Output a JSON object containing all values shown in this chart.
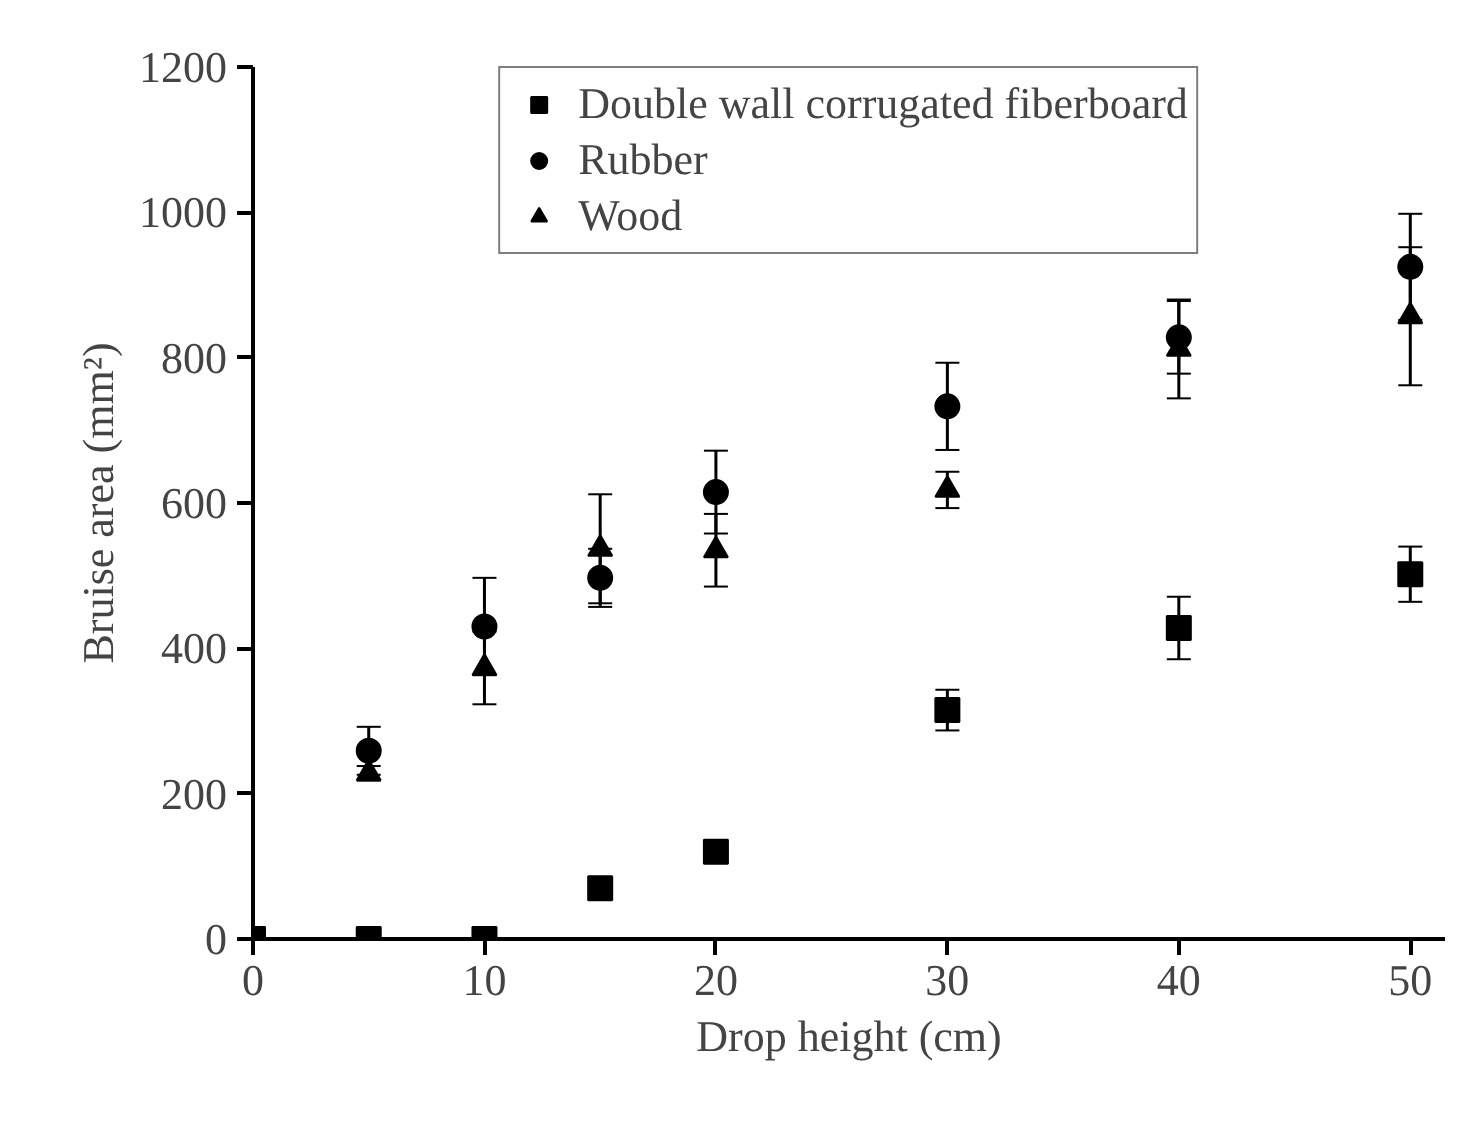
{
  "chart_data": {
    "type": "scatter",
    "xlabel": "Drop height (cm)",
    "ylabel": "Bruise area (mm²)",
    "xlim": [
      0,
      51.5
    ],
    "ylim": [
      0,
      1200
    ],
    "xticks": [
      0,
      10,
      20,
      30,
      40,
      50
    ],
    "yticks": [
      0,
      200,
      400,
      600,
      800,
      1000,
      1200
    ],
    "grid": false,
    "legend": "top",
    "series": [
      {
        "name": "Double wall corrugated fiberboard",
        "color": "#000000",
        "marker": "square",
        "x": [
          0,
          5,
          10,
          15,
          20,
          30,
          40,
          50
        ],
        "values": [
          0,
          0,
          0,
          70,
          120,
          315,
          428,
          502
        ],
        "errors": [
          null,
          null,
          null,
          5,
          15,
          28,
          43,
          38
        ]
      },
      {
        "name": "Rubber",
        "color": "#000000",
        "marker": "circle",
        "x": [
          5,
          10,
          15,
          20,
          30,
          40,
          50
        ],
        "values": [
          259,
          430,
          497,
          615,
          733,
          828,
          925
        ],
        "errors": [
          33,
          67,
          40,
          57,
          60,
          50,
          73
        ]
      },
      {
        "name": "Wood",
        "color": "#000000",
        "marker": "triangle",
        "x": [
          5,
          10,
          15,
          20,
          30,
          40,
          50
        ],
        "values": [
          228,
          373,
          537,
          535,
          618,
          812,
          857
        ],
        "errors": [
          10,
          50,
          75,
          50,
          25,
          68,
          95
        ]
      }
    ]
  }
}
